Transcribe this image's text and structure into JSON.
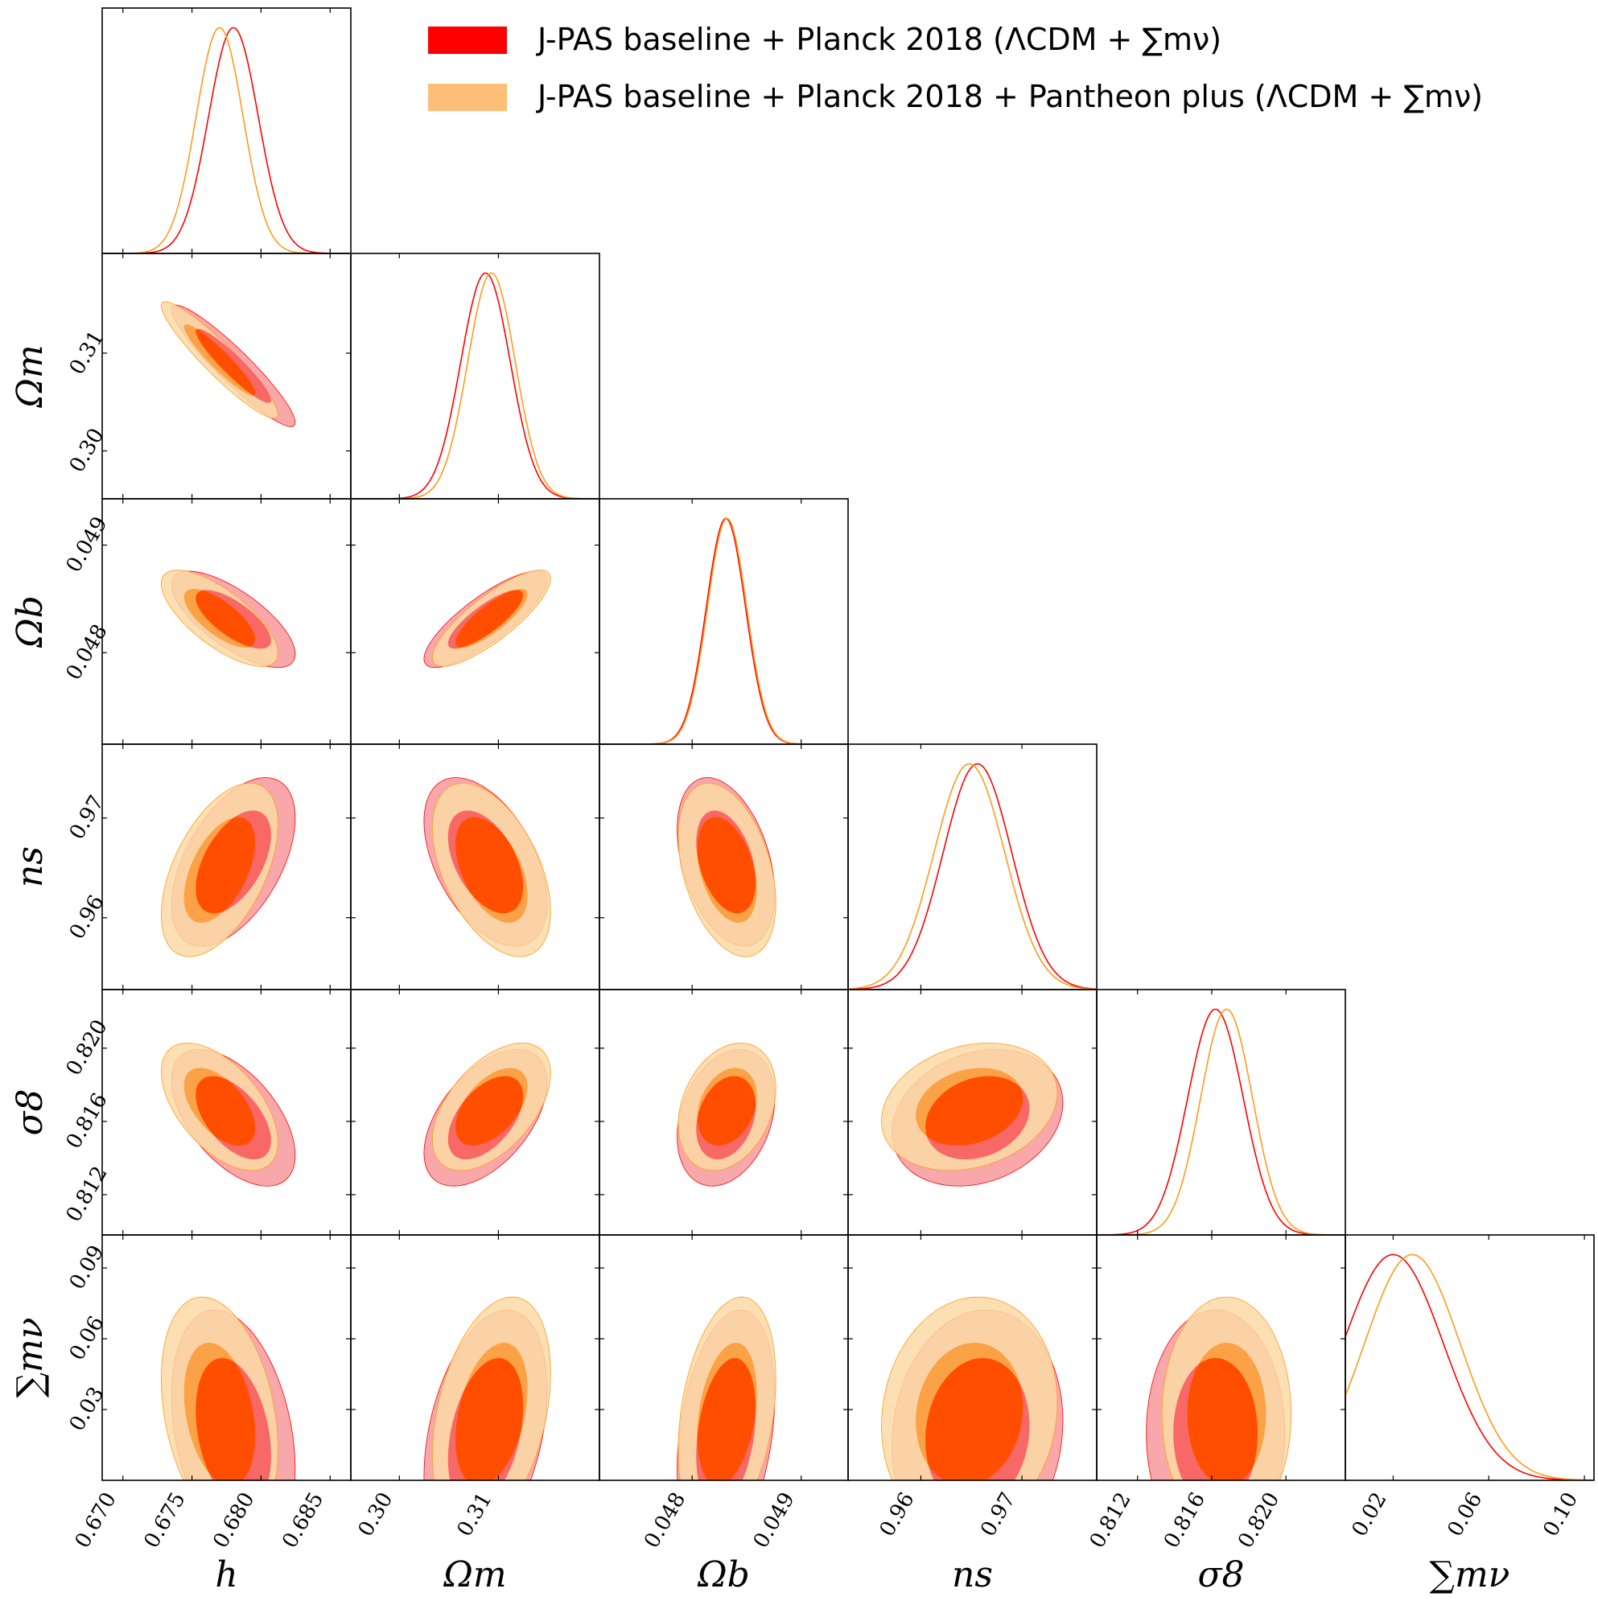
{
  "chart_data": {
    "type": "corner",
    "title": "",
    "parameters": [
      {
        "key": "h",
        "label": "h",
        "range": [
          0.6685,
          0.6865
        ],
        "ticks": [
          0.67,
          0.675,
          0.68,
          0.685
        ],
        "tick_labels": [
          "0.670",
          "0.675",
          "0.680",
          "0.685"
        ]
      },
      {
        "key": "omega_m",
        "label": "Ωm",
        "range": [
          0.2951,
          0.3202
        ],
        "ticks": [
          0.3,
          0.31
        ],
        "tick_labels": [
          "0.30",
          "0.31"
        ]
      },
      {
        "key": "omega_b",
        "label": "Ωb",
        "range": [
          0.04715,
          0.04943
        ],
        "ticks": [
          0.048,
          0.049
        ],
        "tick_labels": [
          "0.048",
          "0.049"
        ]
      },
      {
        "key": "n_s",
        "label": "ns",
        "range": [
          0.9528,
          0.9774
        ],
        "ticks": [
          0.96,
          0.97
        ],
        "tick_labels": [
          "0.96",
          "0.97"
        ]
      },
      {
        "key": "sigma_8",
        "label": "σ8",
        "range": [
          0.8098,
          0.8232
        ],
        "ticks": [
          0.812,
          0.816,
          0.82
        ],
        "tick_labels": [
          "0.812",
          "0.816",
          "0.820"
        ]
      },
      {
        "key": "sum_m_nu",
        "label": "∑mν",
        "range": [
          0.0,
          0.104
        ],
        "ticks": [
          0.02,
          0.06,
          0.1
        ],
        "tick_labels": [
          "0.02",
          "0.06",
          "0.10"
        ],
        "y_ticks": [
          0.03,
          0.06,
          0.09
        ],
        "y_tick_labels": [
          "0.03",
          "0.06",
          "0.09"
        ]
      }
    ],
    "series": [
      {
        "name": "J-PAS baseline + Planck 2018 (ΛCDM + ∑mν)",
        "color": "#ff0000",
        "fill_outer": "#f7999b",
        "fill_inner": "#f65c5f",
        "mean": {
          "h": 0.678,
          "omega_m": 0.3087,
          "omega_b": 0.04831,
          "n_s": 0.9656,
          "sigma_8": 0.8162,
          "sum_m_nu": 0.02
        },
        "sigma": {
          "h": 0.0018,
          "omega_m": 0.0025,
          "omega_b": 0.00018,
          "n_s": 0.0034,
          "sigma_8": 0.0015,
          "sum_m_nu": 0.021
        }
      },
      {
        "name": "J-PAS baseline + Planck 2018 + Pantheon plus (ΛCDM + ∑mν)",
        "color": "#ff9a1c",
        "fill_outer": "#fcd9a6",
        "fill_inner": "#fb9b3c",
        "mean": {
          "h": 0.677,
          "omega_m": 0.3093,
          "omega_b": 0.04832,
          "n_s": 0.9648,
          "sigma_8": 0.8168,
          "sum_m_nu": 0.028
        },
        "sigma": {
          "h": 0.0017,
          "omega_m": 0.0024,
          "omega_b": 0.00018,
          "n_s": 0.0035,
          "sigma_8": 0.0014,
          "sum_m_nu": 0.02
        }
      }
    ],
    "overlap_color": "#ff4e00",
    "correlations": [
      {
        "pair": [
          "omega_m",
          "h"
        ],
        "rho": -0.93
      },
      {
        "pair": [
          "omega_b",
          "h"
        ],
        "rho": -0.72
      },
      {
        "pair": [
          "omega_b",
          "omega_m"
        ],
        "rho": 0.82
      },
      {
        "pair": [
          "n_s",
          "h"
        ],
        "rho": 0.52
      },
      {
        "pair": [
          "n_s",
          "omega_m"
        ],
        "rho": -0.48
      },
      {
        "pair": [
          "n_s",
          "omega_b"
        ],
        "rho": -0.38
      },
      {
        "pair": [
          "sigma_8",
          "h"
        ],
        "rho": -0.55
      },
      {
        "pair": [
          "sigma_8",
          "omega_m"
        ],
        "rho": 0.52
      },
      {
        "pair": [
          "sigma_8",
          "omega_b"
        ],
        "rho": 0.28
      },
      {
        "pair": [
          "sigma_8",
          "n_s"
        ],
        "rho": 0.22
      },
      {
        "pair": [
          "sum_m_nu",
          "h"
        ],
        "rho": -0.3
      },
      {
        "pair": [
          "sum_m_nu",
          "omega_m"
        ],
        "rho": 0.35
      },
      {
        "pair": [
          "sum_m_nu",
          "omega_b"
        ],
        "rho": 0.3
      },
      {
        "pair": [
          "sum_m_nu",
          "n_s"
        ],
        "rho": 0.1
      },
      {
        "pair": [
          "sum_m_nu",
          "sigma_8"
        ],
        "rho": 0.0
      }
    ],
    "legend_position": "top-right",
    "grid": false
  }
}
